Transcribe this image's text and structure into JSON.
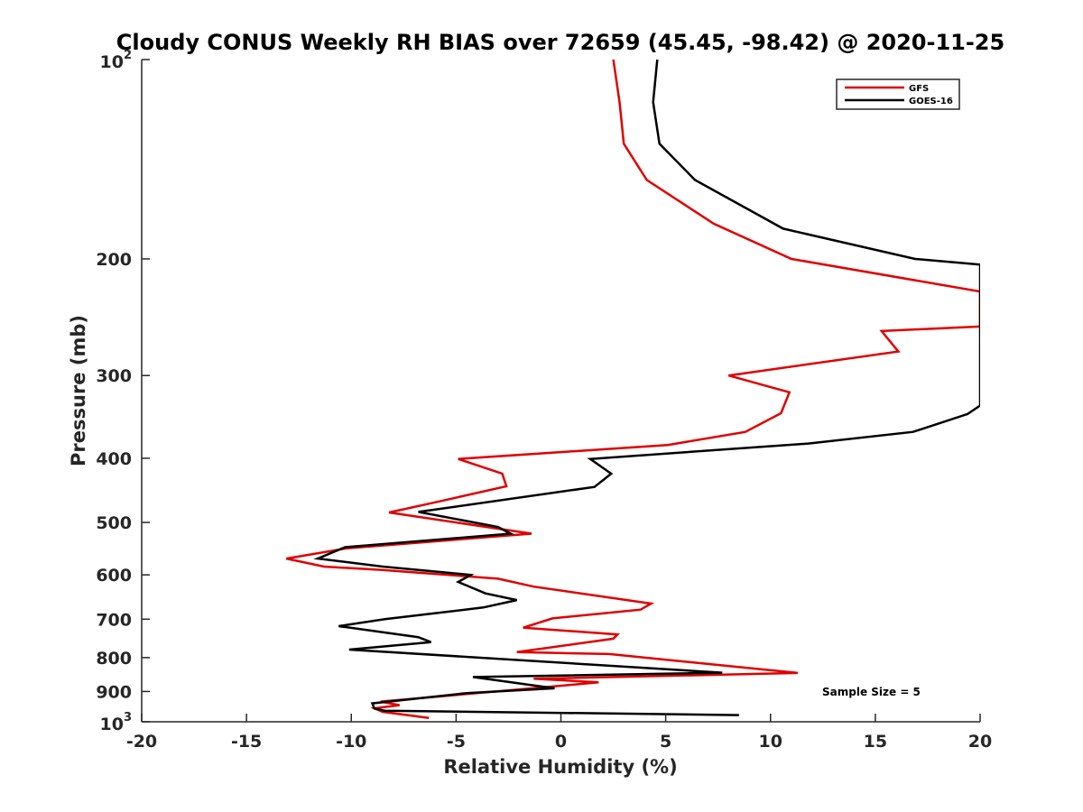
{
  "chart_data": {
    "type": "line",
    "title": "Cloudy CONUS Weekly RH BIAS over 72659 (45.45, -98.42) @ 2020-11-25",
    "xlabel": "Relative Humidity (%)",
    "ylabel": "Pressure (mb)",
    "xlim": [
      -20,
      20
    ],
    "ylim": [
      100,
      1000
    ],
    "yscale": "log",
    "y_reversed": true,
    "grid": false,
    "legend_position": "top-right",
    "annotation": "Sample Size = 5",
    "x_ticks": [
      "-20",
      "-15",
      "-10",
      "-5",
      "0",
      "5",
      "10",
      "15",
      "20"
    ],
    "x_tick_values": [
      -20,
      -15,
      -10,
      -5,
      0,
      5,
      10,
      15,
      20
    ],
    "y_ticks": [
      {
        "value": 100,
        "label": "10",
        "exp": "2"
      },
      {
        "value": 200,
        "label": "200",
        "exp": ""
      },
      {
        "value": 300,
        "label": "300",
        "exp": ""
      },
      {
        "value": 400,
        "label": "400",
        "exp": ""
      },
      {
        "value": 500,
        "label": "500",
        "exp": ""
      },
      {
        "value": 600,
        "label": "600",
        "exp": ""
      },
      {
        "value": 700,
        "label": "700",
        "exp": ""
      },
      {
        "value": 800,
        "label": "800",
        "exp": ""
      },
      {
        "value": 900,
        "label": "900",
        "exp": ""
      },
      {
        "value": 1000,
        "label": "10",
        "exp": "3"
      }
    ],
    "series": [
      {
        "name": "GFS",
        "color": "#e00000",
        "points": [
          [
            2.5,
            100
          ],
          [
            2.8,
            116
          ],
          [
            3.0,
            134
          ],
          [
            4.1,
            152
          ],
          [
            7.3,
            177
          ],
          [
            11.0,
            200
          ],
          [
            20.0,
            224
          ],
          [
            20.0,
            253
          ],
          [
            15.3,
            257
          ],
          [
            16.1,
            276
          ],
          [
            8.0,
            300
          ],
          [
            10.9,
            318
          ],
          [
            10.5,
            342
          ],
          [
            8.8,
            365
          ],
          [
            5.1,
            382
          ],
          [
            -4.9,
            401
          ],
          [
            -2.8,
            422
          ],
          [
            -2.6,
            441
          ],
          [
            -6.1,
            467
          ],
          [
            -8.2,
            483
          ],
          [
            -1.4,
            520
          ],
          [
            -10.2,
            547
          ],
          [
            -13.1,
            567
          ],
          [
            -11.3,
            583
          ],
          [
            -8.5,
            590
          ],
          [
            -3.0,
            608
          ],
          [
            -1.3,
            625
          ],
          [
            4.3,
            663
          ],
          [
            3.8,
            677
          ],
          [
            -0.4,
            698
          ],
          [
            -1.8,
            721
          ],
          [
            2.7,
            738
          ],
          [
            2.5,
            749
          ],
          [
            -2.1,
            785
          ],
          [
            2.3,
            790
          ],
          [
            11.3,
            844
          ],
          [
            -1.3,
            861
          ],
          [
            1.8,
            872
          ],
          [
            -0.1,
            883
          ],
          [
            -8.6,
            932
          ],
          [
            -7.7,
            944
          ],
          [
            -8.9,
            954
          ],
          [
            -8.5,
            966
          ],
          [
            -6.3,
            987
          ]
        ]
      },
      {
        "name": "GOES-16",
        "color": "#000000",
        "points": [
          [
            4.6,
            100
          ],
          [
            4.4,
            116
          ],
          [
            4.7,
            134
          ],
          [
            6.4,
            152
          ],
          [
            10.6,
            180
          ],
          [
            16.9,
            200
          ],
          [
            20.0,
            204
          ],
          [
            20.0,
            333
          ],
          [
            19.4,
            343
          ],
          [
            16.8,
            365
          ],
          [
            11.8,
            380
          ],
          [
            1.4,
            401
          ],
          [
            2.4,
            422
          ],
          [
            1.6,
            442
          ],
          [
            -6.8,
            482
          ],
          [
            -3.0,
            508
          ],
          [
            -2.4,
            520
          ],
          [
            -10.3,
            545
          ],
          [
            -11.6,
            567
          ],
          [
            -8.5,
            583
          ],
          [
            -4.3,
            600
          ],
          [
            -4.9,
            615
          ],
          [
            -3.6,
            640
          ],
          [
            -2.1,
            655
          ],
          [
            -3.7,
            672
          ],
          [
            -8.4,
            700
          ],
          [
            -10.6,
            717
          ],
          [
            -6.8,
            745
          ],
          [
            -6.2,
            758
          ],
          [
            -10.1,
            778
          ],
          [
            7.7,
            843
          ],
          [
            -4.2,
            856
          ],
          [
            -0.3,
            890
          ],
          [
            -4.5,
            905
          ],
          [
            -9.0,
            938
          ],
          [
            -8.9,
            955
          ],
          [
            -8.4,
            962
          ],
          [
            8.5,
            977
          ]
        ]
      }
    ]
  }
}
